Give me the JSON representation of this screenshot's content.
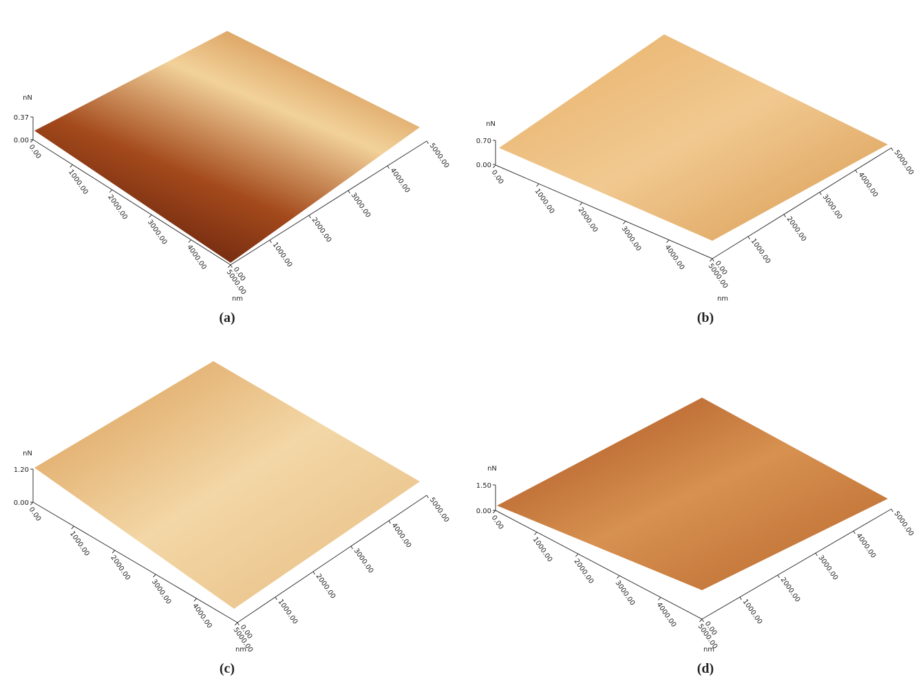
{
  "panels": [
    {
      "label": "(a)",
      "z_unit": "nN",
      "z_ticks": [
        "0.00",
        "0.37"
      ],
      "xy_unit": "nm",
      "left_ticks": [
        "0.00",
        "1000.00",
        "2000.00",
        "3000.00",
        "4000.00",
        "5000.00"
      ],
      "right_ticks": [
        "0.00",
        "1000.00",
        "2000.00",
        "3000.00",
        "4000.00",
        "5000.00"
      ]
    },
    {
      "label": "(b)",
      "z_unit": "nN",
      "z_ticks": [
        "0.00",
        "0.70"
      ],
      "xy_unit": "nm",
      "left_ticks": [
        "0.00",
        "1000.00",
        "2000.00",
        "3000.00",
        "4000.00",
        "5000.00"
      ],
      "right_ticks": [
        "0.00",
        "1000.00",
        "2000.00",
        "3000.00",
        "4000.00",
        "5000.00"
      ]
    },
    {
      "label": "(c)",
      "z_unit": "nN",
      "z_ticks": [
        "0.00",
        "1.20"
      ],
      "xy_unit": "nm",
      "left_ticks": [
        "0.00",
        "1000.00",
        "2000.00",
        "3000.00",
        "4000.00",
        "5000.00"
      ],
      "right_ticks": [
        "0.00",
        "1000.00",
        "2000.00",
        "3000.00",
        "4000.00",
        "5000.00"
      ]
    },
    {
      "label": "(d)",
      "z_unit": "nN",
      "z_ticks": [
        "0.00",
        "1.50"
      ],
      "xy_unit": "nm",
      "left_ticks": [
        "0.00",
        "1000.00",
        "2000.00",
        "3000.00",
        "4000.00",
        "5000.00"
      ],
      "right_ticks": [
        "0.00",
        "1000.00",
        "2000.00",
        "3000.00",
        "4000.00",
        "5000.00"
      ]
    }
  ]
}
